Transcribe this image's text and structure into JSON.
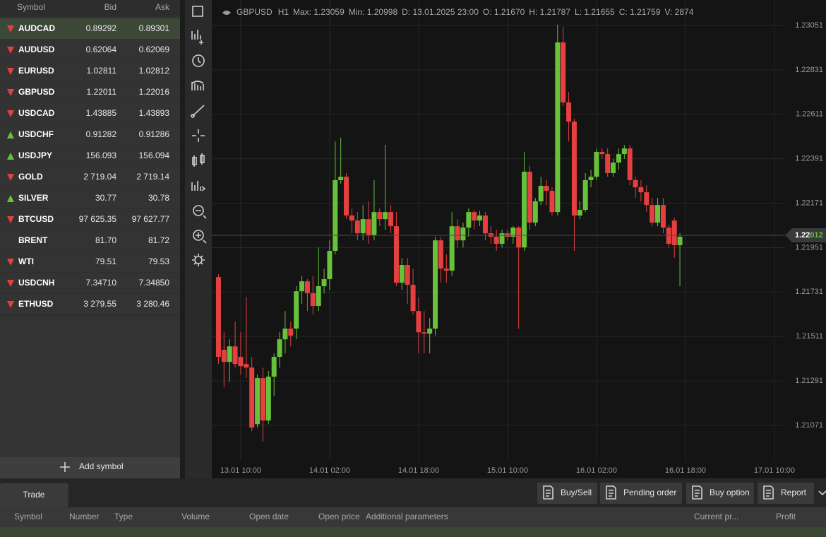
{
  "watchlist": {
    "columns": [
      "Symbol",
      "Bid",
      "Ask"
    ],
    "rows": [
      {
        "symbol": "AUDCAD",
        "bid": "0.89292",
        "ask": "0.89301",
        "trend": "down"
      },
      {
        "symbol": "AUDUSD",
        "bid": "0.62064",
        "ask": "0.62069",
        "trend": "down"
      },
      {
        "symbol": "EURUSD",
        "bid": "1.02811",
        "ask": "1.02812",
        "trend": "down"
      },
      {
        "symbol": "GBPUSD",
        "bid": "1.22011",
        "ask": "1.22016",
        "trend": "down"
      },
      {
        "symbol": "USDCAD",
        "bid": "1.43885",
        "ask": "1.43893",
        "trend": "down"
      },
      {
        "symbol": "USDCHF",
        "bid": "0.91282",
        "ask": "0.91286",
        "trend": "up"
      },
      {
        "symbol": "USDJPY",
        "bid": "156.093",
        "ask": "156.094",
        "trend": "up"
      },
      {
        "symbol": "GOLD",
        "bid": "2 719.04",
        "ask": "2 719.14",
        "trend": "down"
      },
      {
        "symbol": "SILVER",
        "bid": "30.77",
        "ask": "30.78",
        "trend": "up"
      },
      {
        "symbol": "BTCUSD",
        "bid": "97 625.35",
        "ask": "97 627.77",
        "trend": "down"
      },
      {
        "symbol": "BRENT",
        "bid": "81.70",
        "ask": "81.72",
        "trend": null
      },
      {
        "symbol": "WTI",
        "bid": "79.51",
        "ask": "79.53",
        "trend": "down"
      },
      {
        "symbol": "USDCNH",
        "bid": "7.34710",
        "ask": "7.34850",
        "trend": "down"
      },
      {
        "symbol": "ETHUSD",
        "bid": "3 279.55",
        "ask": "3 280.46",
        "trend": "down"
      }
    ],
    "add_button": "Add symbol"
  },
  "chart_header": {
    "symbol": "GBPUSD",
    "timeframe": "H1",
    "stats": [
      "Max: 1.23059",
      "Min: 1.20998",
      "D: 13.01.2025 23:00",
      "O: 1.21670",
      "H: 1.21787",
      "L: 1.21655",
      "C: 1.21759",
      "V: 2874"
    ]
  },
  "chart_data": {
    "type": "candlestick",
    "up_color": "#67c23a",
    "down_color": "#e5403f",
    "grid": true,
    "ylim": [
      1.20896,
      1.23177
    ],
    "yticks": [
      1.23051,
      1.22831,
      1.22611,
      1.22391,
      1.22171,
      1.21951,
      1.21731,
      1.21511,
      1.21291,
      1.21071
    ],
    "current_price": {
      "value": 1.22012,
      "label_main": "1.22",
      "label_tail": "012"
    },
    "categories": [
      null,
      null,
      null,
      null,
      "13.01 10:00",
      null,
      null,
      null,
      null,
      null,
      null,
      null,
      null,
      null,
      null,
      null,
      null,
      null,
      null,
      null,
      "14.01 02:00",
      null,
      null,
      null,
      null,
      null,
      null,
      null,
      null,
      null,
      null,
      null,
      null,
      null,
      null,
      null,
      "14.01 18:00",
      null,
      null,
      null,
      null,
      null,
      null,
      null,
      null,
      null,
      null,
      null,
      null,
      null,
      null,
      null,
      "15.01 10:00",
      null,
      null,
      null,
      null,
      null,
      null,
      null,
      null,
      null,
      null,
      null,
      null,
      null,
      null,
      null,
      "16.01 02:00",
      null,
      null,
      null,
      null,
      null,
      null,
      null,
      null,
      null,
      null,
      null,
      null,
      null,
      null,
      null,
      "16.01 18:00",
      null,
      null,
      null,
      null,
      null,
      null,
      null,
      null,
      null,
      null,
      null,
      null,
      null,
      null,
      null,
      "17.01 10:00"
    ],
    "open": [
      1.21805,
      1.21445,
      1.21385,
      1.21462,
      1.2141,
      1.21375,
      1.21357,
      1.21077,
      1.21305,
      1.21095,
      1.21312,
      1.2141,
      1.21497,
      1.2155,
      1.2155,
      1.21735,
      1.21784,
      1.21725,
      1.21662,
      1.2176,
      1.21795,
      1.21935,
      1.22285,
      1.22302,
      1.2211,
      1.22085,
      1.22022,
      1.22092,
      1.22012,
      1.22127,
      1.22092,
      1.22127,
      1.22057,
      1.21777,
      1.21865,
      1.21767,
      1.21637,
      1.21532,
      1.21525,
      1.2155,
      1.21987,
      1.21847,
      1.21837,
      1.22057,
      1.21987,
      1.2205,
      1.22127,
      1.22085,
      1.2211,
      1.22022,
      1.22005,
      1.2197,
      1.22022,
      1.22005,
      1.2205,
      1.21952,
      1.22327,
      1.22075,
      1.2218,
      1.22257,
      1.22232,
      1.22127,
      1.22967,
      1.2267,
      1.22575,
      1.2211,
      1.22138,
      1.22285,
      1.22302,
      1.22425,
      1.22414,
      1.2232,
      1.22372,
      1.22414,
      1.22442,
      1.22285,
      1.2225,
      1.22225,
      1.22162,
      1.22075,
      1.22162,
      1.2205,
      1.22085,
      1.21963,
      null,
      null,
      null,
      null,
      null,
      null,
      null,
      null,
      null,
      null,
      null,
      null,
      null,
      null,
      null,
      null,
      null
    ],
    "high": [
      1.21819,
      1.21532,
      1.21497,
      1.21585,
      1.21532,
      1.21707,
      1.2141,
      1.21322,
      1.21357,
      1.2134,
      1.21427,
      1.21532,
      1.21637,
      1.21585,
      1.2176,
      1.21812,
      1.21795,
      1.21812,
      1.21952,
      1.21847,
      1.21987,
      1.22477,
      1.22495,
      1.2232,
      1.22145,
      1.22127,
      1.22162,
      1.2218,
      1.22285,
      1.22145,
      1.2246,
      1.22162,
      1.22127,
      1.219,
      1.219,
      1.21847,
      1.21707,
      1.21637,
      1.21602,
      1.22005,
      1.22005,
      1.21917,
      1.22127,
      1.22092,
      1.22075,
      1.22145,
      1.22138,
      1.22134,
      1.22127,
      1.22057,
      1.2204,
      1.2204,
      1.2204,
      1.22057,
      1.22057,
      1.22425,
      1.22355,
      1.22197,
      1.22302,
      1.22285,
      1.2225,
      1.23055,
      1.23044,
      1.22722,
      1.22589,
      1.2218,
      1.2232,
      1.22337,
      1.22442,
      1.22442,
      1.22442,
      1.2239,
      1.22442,
      1.2246,
      1.2246,
      1.22302,
      1.22285,
      1.2226,
      1.22197,
      1.22197,
      1.22197,
      1.22064,
      1.22099,
      1.22022,
      null,
      null,
      null,
      null,
      null,
      null,
      null,
      null,
      null,
      null,
      null,
      null,
      null,
      null,
      null,
      null,
      null
    ],
    "low": [
      1.21375,
      1.21259,
      1.21287,
      1.21357,
      1.21322,
      1.21305,
      1.21042,
      1.2106,
      1.2099,
      1.21077,
      1.21217,
      1.21357,
      1.21427,
      1.21462,
      1.21497,
      1.21672,
      1.21637,
      1.2162,
      1.21637,
      1.21725,
      1.21742,
      1.21917,
      1.22267,
      1.22092,
      1.22022,
      1.21987,
      1.21987,
      1.2197,
      1.21987,
      1.22057,
      1.2204,
      1.22022,
      1.2176,
      1.21742,
      1.21672,
      1.2162,
      1.21427,
      1.21427,
      1.21427,
      1.21515,
      1.21777,
      1.21777,
      1.21812,
      1.21952,
      1.21952,
      1.22005,
      1.2204,
      1.22057,
      1.21987,
      1.2197,
      1.21935,
      1.21952,
      1.21987,
      1.2197,
      1.2155,
      1.21935,
      1.2204,
      1.22057,
      1.22162,
      1.22162,
      1.2211,
      1.2211,
      1.22652,
      1.22477,
      1.21935,
      1.22092,
      1.22127,
      1.2225,
      1.22285,
      1.2239,
      1.22302,
      1.22302,
      1.22337,
      1.2239,
      1.2226,
      1.22197,
      1.2218,
      1.22127,
      1.22057,
      1.22057,
      1.22022,
      1.21952,
      1.219,
      1.2176,
      null,
      null,
      null,
      null,
      null,
      null,
      null,
      null,
      null,
      null,
      null,
      null,
      null,
      null,
      null,
      null,
      null
    ],
    "close": [
      1.2141,
      1.21385,
      1.21462,
      1.21375,
      1.21364,
      1.21357,
      1.2106,
      1.21305,
      1.21095,
      1.21312,
      1.2141,
      1.21497,
      1.2155,
      1.21515,
      1.21735,
      1.21784,
      1.21725,
      1.21662,
      1.2176,
      1.21795,
      1.21935,
      1.22285,
      1.22302,
      1.2211,
      1.22085,
      1.22022,
      1.22092,
      1.22012,
      1.22127,
      1.22092,
      1.22127,
      1.22057,
      1.21777,
      1.21865,
      1.21767,
      1.21637,
      1.21532,
      1.21525,
      1.2155,
      1.21987,
      1.21847,
      1.21837,
      1.22057,
      1.21987,
      1.2205,
      1.22127,
      1.22085,
      1.2211,
      1.22022,
      1.22005,
      1.2197,
      1.22022,
      1.22005,
      1.2205,
      1.21952,
      1.22327,
      1.22075,
      1.2218,
      1.22257,
      1.22232,
      1.22127,
      1.22967,
      1.2267,
      1.22575,
      1.2211,
      1.22138,
      1.22285,
      1.22302,
      1.22425,
      1.22414,
      1.2232,
      1.22372,
      1.22414,
      1.22442,
      1.22285,
      1.2225,
      1.22225,
      1.22162,
      1.22075,
      1.22162,
      1.2205,
      1.2197,
      1.21963,
      1.22005,
      null,
      null,
      null,
      null,
      null,
      null,
      null,
      null,
      null,
      null,
      null,
      null,
      null,
      null,
      null,
      null,
      null
    ]
  },
  "bottom_panel": {
    "tab": "Trade",
    "buttons": [
      "Buy/Sell",
      "Pending order",
      "Buy option",
      "Report"
    ],
    "columns": [
      "Symbol",
      "Number",
      "Type",
      "Volume",
      "Open date",
      "Open price",
      "Additional parameters",
      "Current pr...",
      "Profit"
    ]
  }
}
